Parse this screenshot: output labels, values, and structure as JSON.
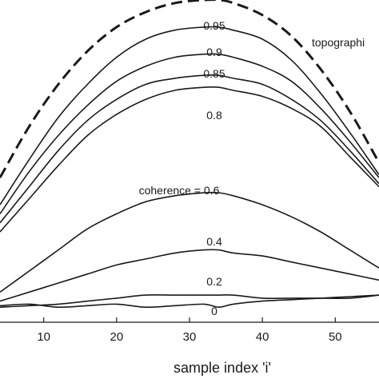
{
  "chart_data": {
    "type": "line",
    "xlabel": "sample index  'i'",
    "ylabel": "",
    "xlim": [
      4,
      56
    ],
    "ylim": [
      -0.02,
      1.05
    ],
    "x_ticks": [
      10,
      20,
      30,
      40,
      50
    ],
    "grid": false,
    "line_color": "#1a1a1a",
    "series": [
      {
        "name": "topographic",
        "label": "topographi",
        "style": "dashed",
        "x": [
          4,
          8,
          12,
          16,
          20,
          24,
          28,
          32,
          34,
          36,
          40,
          44,
          48,
          52,
          56
        ],
        "y": [
          0.46,
          0.63,
          0.77,
          0.88,
          0.96,
          1.01,
          1.04,
          1.05,
          1.05,
          1.04,
          1.0,
          0.93,
          0.82,
          0.68,
          0.51
        ]
      },
      {
        "name": "0.95",
        "label": "0.95",
        "style": "solid",
        "x": [
          4,
          8,
          12,
          16,
          20,
          24,
          28,
          32,
          34,
          36,
          40,
          44,
          48,
          52,
          56
        ],
        "y": [
          0.37,
          0.52,
          0.66,
          0.77,
          0.86,
          0.92,
          0.95,
          0.96,
          0.96,
          0.95,
          0.92,
          0.85,
          0.74,
          0.61,
          0.47
        ]
      },
      {
        "name": "0.9",
        "label": "0.9",
        "style": "solid",
        "x": [
          4,
          8,
          12,
          16,
          20,
          24,
          28,
          32,
          34,
          36,
          40,
          44,
          48,
          52,
          56
        ],
        "y": [
          0.34,
          0.48,
          0.6,
          0.7,
          0.78,
          0.83,
          0.86,
          0.87,
          0.87,
          0.86,
          0.83,
          0.78,
          0.69,
          0.58,
          0.46
        ]
      },
      {
        "name": "0.85",
        "label": "0.85",
        "style": "solid",
        "x": [
          4,
          8,
          12,
          16,
          20,
          24,
          28,
          32,
          34,
          36,
          40,
          44,
          48,
          52,
          56
        ],
        "y": [
          0.31,
          0.43,
          0.55,
          0.65,
          0.72,
          0.77,
          0.79,
          0.8,
          0.8,
          0.79,
          0.77,
          0.72,
          0.65,
          0.55,
          0.44
        ]
      },
      {
        "name": "0.8",
        "label": "0.8",
        "style": "solid",
        "x": [
          4,
          8,
          12,
          16,
          20,
          24,
          28,
          32,
          34,
          36,
          40,
          44,
          48,
          52,
          56
        ],
        "y": [
          0.28,
          0.39,
          0.5,
          0.6,
          0.67,
          0.72,
          0.75,
          0.76,
          0.76,
          0.75,
          0.73,
          0.69,
          0.63,
          0.53,
          0.43
        ]
      },
      {
        "name": "0.6",
        "label": "coherence = 0.6",
        "style": "solid",
        "x": [
          4,
          8,
          12,
          16,
          20,
          24,
          28,
          32,
          34,
          36,
          40,
          44,
          48,
          52,
          56
        ],
        "y": [
          0.08,
          0.15,
          0.22,
          0.29,
          0.34,
          0.38,
          0.4,
          0.41,
          0.41,
          0.4,
          0.37,
          0.33,
          0.28,
          0.22,
          0.16
        ]
      },
      {
        "name": "0.4",
        "label": "0.4",
        "style": "solid",
        "x": [
          4,
          8,
          12,
          16,
          20,
          24,
          28,
          32,
          34,
          36,
          40,
          44,
          48,
          52,
          56
        ],
        "y": [
          0.05,
          0.08,
          0.11,
          0.14,
          0.17,
          0.19,
          0.21,
          0.22,
          0.22,
          0.21,
          0.2,
          0.18,
          0.16,
          0.14,
          0.12
        ]
      },
      {
        "name": "0.2",
        "label": "0.2",
        "style": "solid",
        "x": [
          4,
          8,
          12,
          16,
          20,
          24,
          28,
          32,
          34,
          36,
          40,
          44,
          48,
          52,
          56
        ],
        "y": [
          0.03,
          0.035,
          0.04,
          0.05,
          0.06,
          0.07,
          0.07,
          0.07,
          0.07,
          0.07,
          0.06,
          0.06,
          0.06,
          0.06,
          0.07
        ]
      },
      {
        "name": "0",
        "label": "0",
        "style": "solid",
        "x": [
          4,
          8,
          12,
          16,
          20,
          24,
          28,
          32,
          34,
          36,
          40,
          44,
          48,
          52,
          56
        ],
        "y": [
          0.035,
          0.04,
          0.03,
          0.035,
          0.04,
          0.03,
          0.035,
          0.04,
          0.03,
          0.04,
          0.05,
          0.055,
          0.06,
          0.065,
          0.07
        ]
      }
    ]
  }
}
